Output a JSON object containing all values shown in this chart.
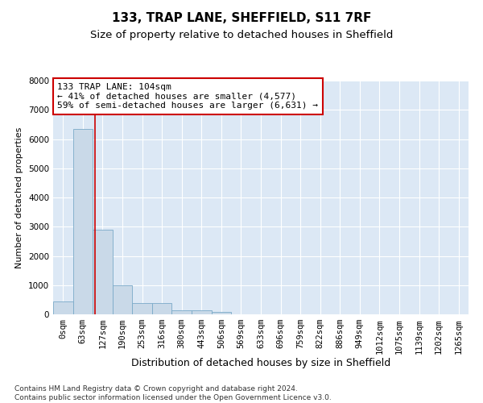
{
  "title": "133, TRAP LANE, SHEFFIELD, S11 7RF",
  "subtitle": "Size of property relative to detached houses in Sheffield",
  "xlabel": "Distribution of detached houses by size in Sheffield",
  "ylabel": "Number of detached properties",
  "categories": [
    "0sqm",
    "63sqm",
    "127sqm",
    "190sqm",
    "253sqm",
    "316sqm",
    "380sqm",
    "443sqm",
    "506sqm",
    "569sqm",
    "633sqm",
    "696sqm",
    "759sqm",
    "822sqm",
    "886sqm",
    "949sqm",
    "1012sqm",
    "1075sqm",
    "1139sqm",
    "1202sqm",
    "1265sqm"
  ],
  "values": [
    450,
    6350,
    2900,
    1000,
    400,
    380,
    150,
    130,
    90,
    0,
    0,
    0,
    0,
    0,
    0,
    0,
    0,
    0,
    0,
    0,
    0
  ],
  "bar_color": "#c9d9e8",
  "bar_edge_color": "#7aaac8",
  "property_line_x": 1.63,
  "annotation_text": "133 TRAP LANE: 104sqm\n← 41% of detached houses are smaller (4,577)\n59% of semi-detached houses are larger (6,631) →",
  "annotation_box_color": "#ffffff",
  "annotation_box_edge_color": "#cc0000",
  "vline_color": "#cc0000",
  "ylim": [
    0,
    8000
  ],
  "yticks": [
    0,
    1000,
    2000,
    3000,
    4000,
    5000,
    6000,
    7000,
    8000
  ],
  "background_color": "#dce8f5",
  "plot_bg_color": "#dce8f5",
  "footer": "Contains HM Land Registry data © Crown copyright and database right 2024.\nContains public sector information licensed under the Open Government Licence v3.0.",
  "title_fontsize": 11,
  "subtitle_fontsize": 9.5,
  "xlabel_fontsize": 9,
  "ylabel_fontsize": 8,
  "tick_fontsize": 7.5,
  "annotation_fontsize": 8,
  "footer_fontsize": 6.5
}
